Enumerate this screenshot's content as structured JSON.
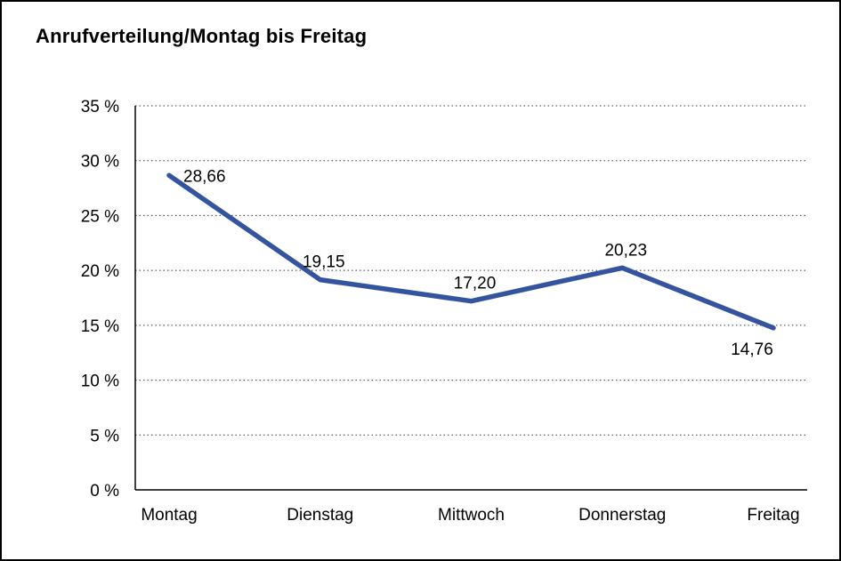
{
  "chart_data": {
    "type": "line",
    "title": "Anrufverteilung/Montag bis Freitag",
    "categories": [
      "Montag",
      "Dienstag",
      "Mittwoch",
      "Donnerstag",
      "Freitag"
    ],
    "values": [
      28.66,
      19.15,
      17.2,
      20.23,
      14.76
    ],
    "value_labels": [
      "28,66",
      "19,15",
      "17,20",
      "20,23",
      "14,76"
    ],
    "label_positions": [
      "right",
      "above",
      "above",
      "above",
      "below"
    ],
    "xlabel": "",
    "ylabel": "",
    "ylim": [
      0,
      35
    ],
    "ytick_step": 5,
    "ytick_suffix": " %",
    "grid": true,
    "legend": false,
    "line_color": "#35549f",
    "background": "#ffffff",
    "border_color": "#000000"
  }
}
